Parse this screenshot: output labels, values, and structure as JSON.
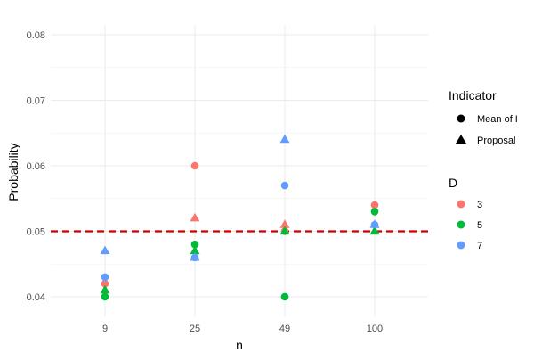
{
  "chart_data": {
    "type": "scatter",
    "title": "",
    "xlabel": "n",
    "ylabel": "Probability",
    "categories": [
      "9",
      "25",
      "49",
      "100"
    ],
    "ylim": [
      0.037,
      0.0815
    ],
    "y_ticks": [
      "0.04",
      "0.05",
      "0.06",
      "0.07",
      "0.08"
    ],
    "y_tick_values": [
      0.04,
      0.05,
      0.06,
      0.07,
      0.08
    ],
    "grid": true,
    "reference_line": {
      "y": 0.05,
      "style": "dashed",
      "color": "#cc0000"
    },
    "legends": {
      "shape": {
        "title": "Indicator",
        "items": [
          {
            "label": "Mean of I",
            "shape": "circle"
          },
          {
            "label": "Proposal",
            "shape": "triangle"
          }
        ]
      },
      "color": {
        "title": "D",
        "items": [
          {
            "label": "3",
            "color": "#F8766D"
          },
          {
            "label": "5",
            "color": "#00BA38"
          },
          {
            "label": "7",
            "color": "#619CFF"
          }
        ]
      },
      "placement": "right"
    },
    "series": [
      {
        "D": "3",
        "indicator": "Mean of I",
        "color": "#F8766D",
        "shape": "circle",
        "values": [
          0.042,
          0.06,
          0.05,
          0.054
        ]
      },
      {
        "D": "5",
        "indicator": "Mean of I",
        "color": "#00BA38",
        "shape": "circle",
        "values": [
          0.04,
          0.048,
          0.04,
          0.053
        ]
      },
      {
        "D": "7",
        "indicator": "Mean of I",
        "color": "#619CFF",
        "shape": "circle",
        "values": [
          0.043,
          0.046,
          0.057,
          0.051
        ]
      },
      {
        "D": "3",
        "indicator": "Proposal",
        "color": "#F8766D",
        "shape": "triangle",
        "values": [
          0.041,
          0.052,
          0.051,
          0.05
        ]
      },
      {
        "D": "5",
        "indicator": "Proposal",
        "color": "#00BA38",
        "shape": "triangle",
        "values": [
          0.041,
          0.047,
          0.05,
          0.05
        ]
      },
      {
        "D": "7",
        "indicator": "Proposal",
        "color": "#619CFF",
        "shape": "triangle",
        "values": [
          0.047,
          0.046,
          0.064,
          0.051
        ]
      }
    ]
  }
}
